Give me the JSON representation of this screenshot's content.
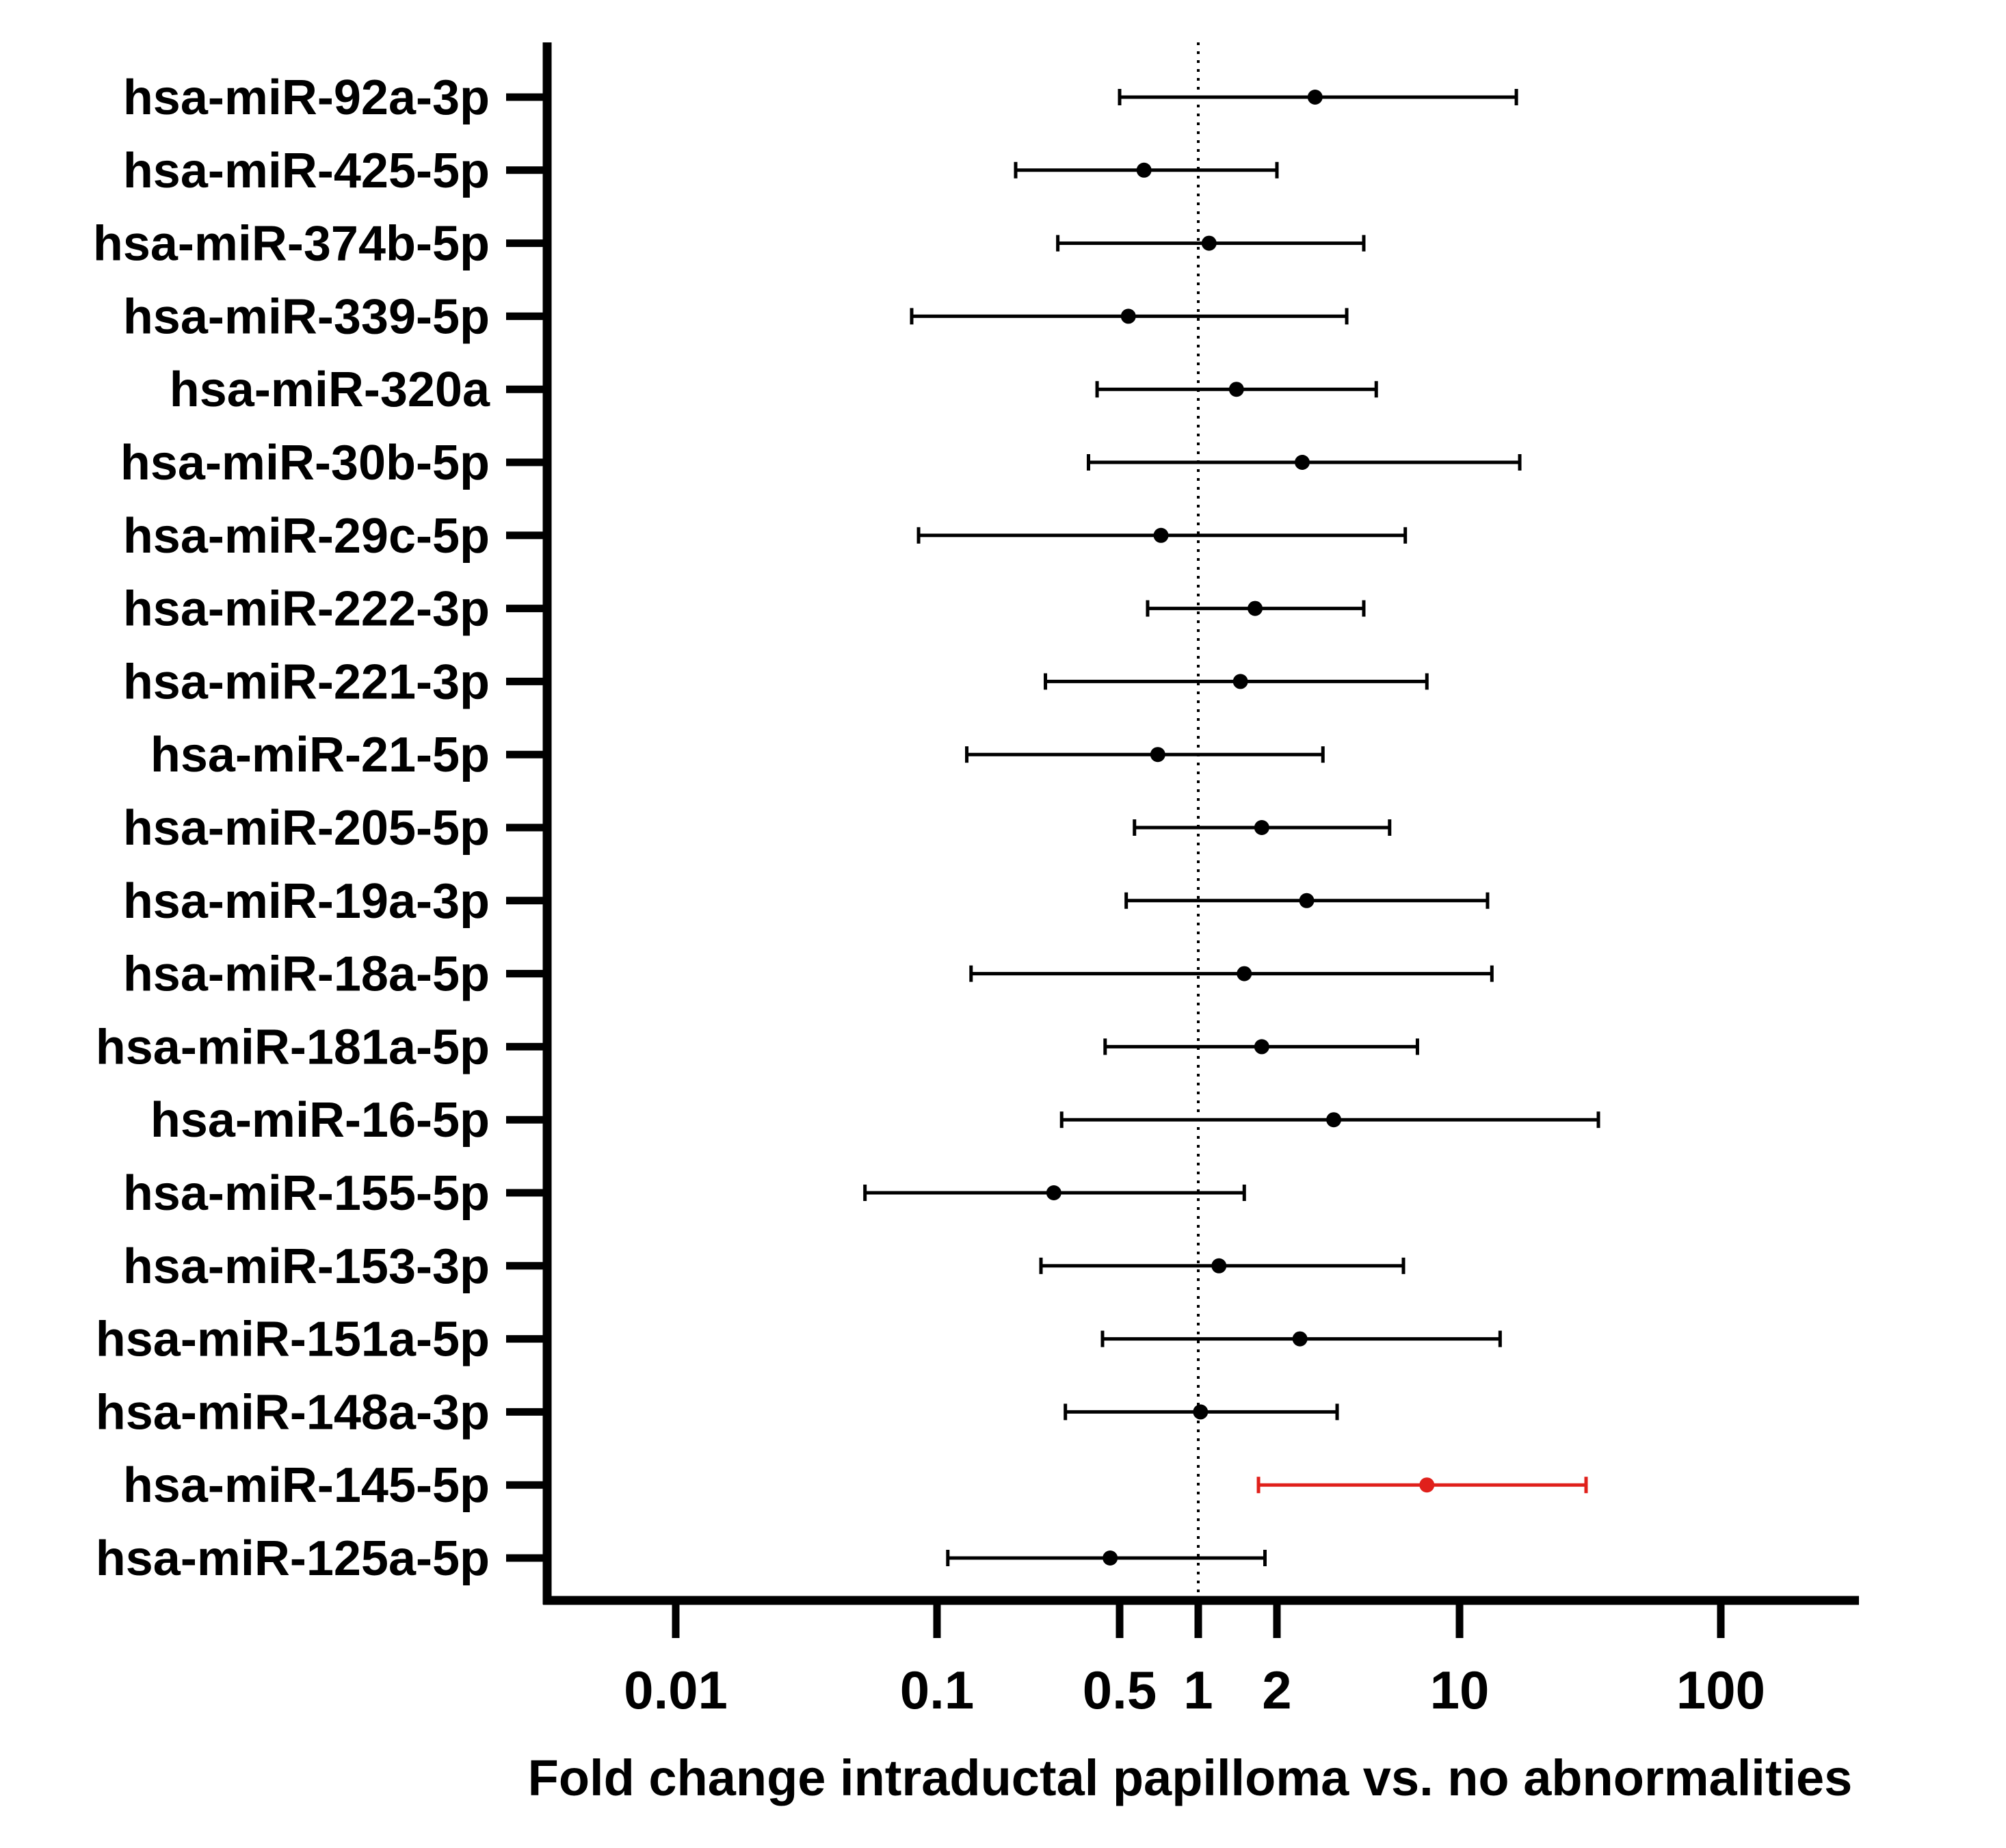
{
  "chart_data": {
    "type": "forest",
    "title": "",
    "xlabel": "Fold change intraductal papilloma vs. no abnormalities",
    "ylabel": "",
    "xscale": "log",
    "xlim": [
      0.003,
      300
    ],
    "xticks": [
      {
        "value": 0.01,
        "label": "0.01"
      },
      {
        "value": 0.1,
        "label": "0.1"
      },
      {
        "value": 0.5,
        "label": "0.5"
      },
      {
        "value": 1,
        "label": "1"
      },
      {
        "value": 2,
        "label": "2"
      },
      {
        "value": 10,
        "label": "10"
      },
      {
        "value": 100,
        "label": "100"
      }
    ],
    "reference_line": {
      "value": 1,
      "style": "dotted"
    },
    "colors": {
      "default": "#000000",
      "highlight": "#e0201b"
    },
    "rows": [
      {
        "label": "hsa-miR-92a-3p",
        "estimate": 2.8,
        "lower": 0.5,
        "upper": 16.5,
        "highlight": false
      },
      {
        "label": "hsa-miR-425-5p",
        "estimate": 0.62,
        "lower": 0.2,
        "upper": 2.0,
        "highlight": false
      },
      {
        "label": "hsa-miR-374b-5p",
        "estimate": 1.1,
        "lower": 0.29,
        "upper": 4.3,
        "highlight": false
      },
      {
        "label": "hsa-miR-339-5p",
        "estimate": 0.54,
        "lower": 0.08,
        "upper": 3.7,
        "highlight": false
      },
      {
        "label": "hsa-miR-320a",
        "estimate": 1.4,
        "lower": 0.41,
        "upper": 4.8,
        "highlight": false
      },
      {
        "label": "hsa-miR-30b-5p",
        "estimate": 2.5,
        "lower": 0.38,
        "upper": 17.0,
        "highlight": false
      },
      {
        "label": "hsa-miR-29c-5p",
        "estimate": 0.72,
        "lower": 0.085,
        "upper": 6.2,
        "highlight": false
      },
      {
        "label": "hsa-miR-222-3p",
        "estimate": 1.65,
        "lower": 0.64,
        "upper": 4.3,
        "highlight": false
      },
      {
        "label": "hsa-miR-221-3p",
        "estimate": 1.45,
        "lower": 0.26,
        "upper": 7.5,
        "highlight": false
      },
      {
        "label": "hsa-miR-21-5p",
        "estimate": 0.7,
        "lower": 0.13,
        "upper": 3.0,
        "highlight": false
      },
      {
        "label": "hsa-miR-205-5p",
        "estimate": 1.75,
        "lower": 0.57,
        "upper": 5.4,
        "highlight": false
      },
      {
        "label": "hsa-miR-19a-3p",
        "estimate": 2.6,
        "lower": 0.53,
        "upper": 12.8,
        "highlight": false
      },
      {
        "label": "hsa-miR-18a-5p",
        "estimate": 1.5,
        "lower": 0.135,
        "upper": 13.3,
        "highlight": false
      },
      {
        "label": "hsa-miR-181a-5p",
        "estimate": 1.75,
        "lower": 0.44,
        "upper": 6.9,
        "highlight": false
      },
      {
        "label": "hsa-miR-16-5p",
        "estimate": 3.3,
        "lower": 0.3,
        "upper": 34.0,
        "highlight": false
      },
      {
        "label": "hsa-miR-155-5p",
        "estimate": 0.28,
        "lower": 0.053,
        "upper": 1.5,
        "highlight": false
      },
      {
        "label": "hsa-miR-153-3p",
        "estimate": 1.2,
        "lower": 0.25,
        "upper": 6.1,
        "highlight": false
      },
      {
        "label": "hsa-miR-151a-5p",
        "estimate": 2.45,
        "lower": 0.43,
        "upper": 14.3,
        "highlight": false
      },
      {
        "label": "hsa-miR-148a-3p",
        "estimate": 1.02,
        "lower": 0.31,
        "upper": 3.4,
        "highlight": false
      },
      {
        "label": "hsa-miR-145-5p",
        "estimate": 7.5,
        "lower": 1.7,
        "upper": 30.5,
        "highlight": true
      },
      {
        "label": "hsa-miR-125a-5p",
        "estimate": 0.46,
        "lower": 0.11,
        "upper": 1.8,
        "highlight": false
      }
    ]
  }
}
